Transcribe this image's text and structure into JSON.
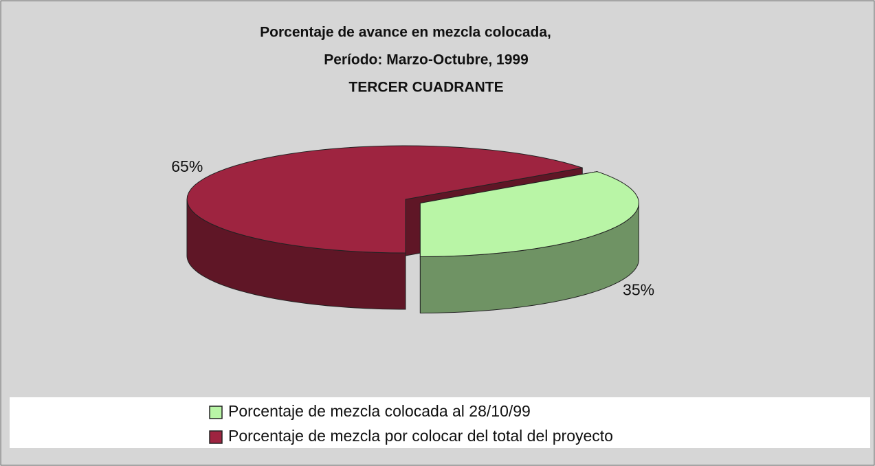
{
  "chart_data": {
    "type": "pie3d",
    "title": [
      "Porcentaje de avance en mezcla colocada,",
      "Período: Marzo-Octubre, 1999",
      "TERCER CUADRANTE"
    ],
    "categories": [
      "Porcentaje de mezcla colocada al 28/10/99",
      "Porcentaje de mezcla por colocar del total del proyecto"
    ],
    "values": [
      35,
      65
    ],
    "value_labels": [
      "35%",
      "65%"
    ],
    "colors": [
      "#b9f5a6",
      "#9e2440"
    ],
    "legend": "bottom"
  }
}
